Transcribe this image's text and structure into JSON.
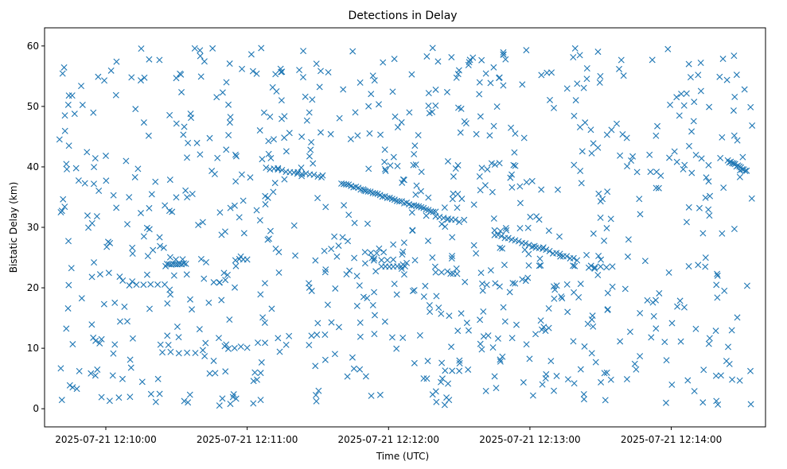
{
  "chart_data": {
    "type": "scatter",
    "title": "Detections in Delay",
    "xlabel": "Time (UTC)",
    "ylabel": "Bistatic Delay (km)",
    "x_type": "time",
    "x_range": [
      "2025-07-21 12:09:40",
      "2025-07-21 12:14:35"
    ],
    "xlim": [
      "2025-07-21 12:09:34",
      "2025-07-21 12:14:40"
    ],
    "ylim": [
      -3,
      63
    ],
    "x_ticks": [
      "2025-07-21 12:10:00",
      "2025-07-21 12:11:00",
      "2025-07-21 12:12:00",
      "2025-07-21 12:13:00",
      "2025-07-21 12:14:00"
    ],
    "y_ticks": [
      0,
      10,
      20,
      30,
      40,
      50,
      60
    ],
    "grid": false,
    "marker": "x",
    "color": "#1f77b4",
    "series": [
      {
        "name": "",
        "tracks": [
          {
            "from": [
              "2025-07-21 12:10:00",
              41.8
            ],
            "to": [
              "2025-07-21 12:10:40",
              42.2
            ],
            "count": 2
          },
          {
            "from": [
              "2025-07-21 12:10:26",
              24.0
            ],
            "to": [
              "2025-07-21 12:10:34",
              24.0
            ],
            "count": 10
          },
          {
            "from": [
              "2025-07-21 12:10:10",
              20.4
            ],
            "to": [
              "2025-07-21 12:10:25",
              20.5
            ],
            "count": 6
          },
          {
            "from": [
              "2025-07-21 12:10:24",
              9.3
            ],
            "to": [
              "2025-07-21 12:10:38",
              9.3
            ],
            "count": 5
          },
          {
            "from": [
              "2025-07-21 12:10:55",
              24.6
            ],
            "to": [
              "2025-07-21 12:11:00",
              24.8
            ],
            "count": 4
          },
          {
            "from": [
              "2025-07-21 12:10:52",
              10.0
            ],
            "to": [
              "2025-07-21 12:11:00",
              10.2
            ],
            "count": 4
          },
          {
            "from": [
              "2025-07-21 12:11:08",
              39.8
            ],
            "to": [
              "2025-07-21 12:11:30",
              38.5
            ],
            "count": 14
          },
          {
            "from": [
              "2025-07-21 12:11:40",
              37.3
            ],
            "to": [
              "2025-07-21 12:12:20",
              32.5
            ],
            "count": 40
          },
          {
            "from": [
              "2025-07-21 12:12:20",
              31.8
            ],
            "to": [
              "2025-07-21 12:12:30",
              31.0
            ],
            "count": 7
          },
          {
            "from": [
              "2025-07-21 12:12:45",
              28.8
            ],
            "to": [
              "2025-07-21 12:13:20",
              24.6
            ],
            "count": 25
          },
          {
            "from": [
              "2025-07-21 12:11:50",
              25.8
            ],
            "to": [
              "2025-07-21 12:11:55",
              25.8
            ],
            "count": 3
          },
          {
            "from": [
              "2025-07-21 12:11:57",
              24.6
            ],
            "to": [
              "2025-07-21 12:12:02",
              24.6
            ],
            "count": 3
          },
          {
            "from": [
              "2025-07-21 12:11:57",
              23.6
            ],
            "to": [
              "2025-07-21 12:12:07",
              23.6
            ],
            "count": 7
          },
          {
            "from": [
              "2025-07-21 12:12:20",
              22.6
            ],
            "to": [
              "2025-07-21 12:12:25",
              22.6
            ],
            "count": 3
          },
          {
            "from": [
              "2025-07-21 12:12:24",
              6.3
            ],
            "to": [
              "2025-07-21 12:12:30",
              6.3
            ],
            "count": 3
          },
          {
            "from": [
              "2025-07-21 12:12:45",
              29.5
            ],
            "to": [
              "2025-07-21 12:12:50",
              29.5
            ],
            "count": 3
          },
          {
            "from": [
              "2025-07-21 12:13:25",
              23.4
            ],
            "to": [
              "2025-07-21 12:13:35",
              23.4
            ],
            "count": 5
          },
          {
            "from": [
              "2025-07-21 12:14:24",
              41.0
            ],
            "to": [
              "2025-07-21 12:14:32",
              39.3
            ],
            "count": 14
          }
        ],
        "clutter": {
          "from": "2025-07-21 12:09:40",
          "to": "2025-07-21 12:14:35",
          "ymin": 0.5,
          "ymax": 59.8,
          "count": 850
        }
      }
    ]
  }
}
